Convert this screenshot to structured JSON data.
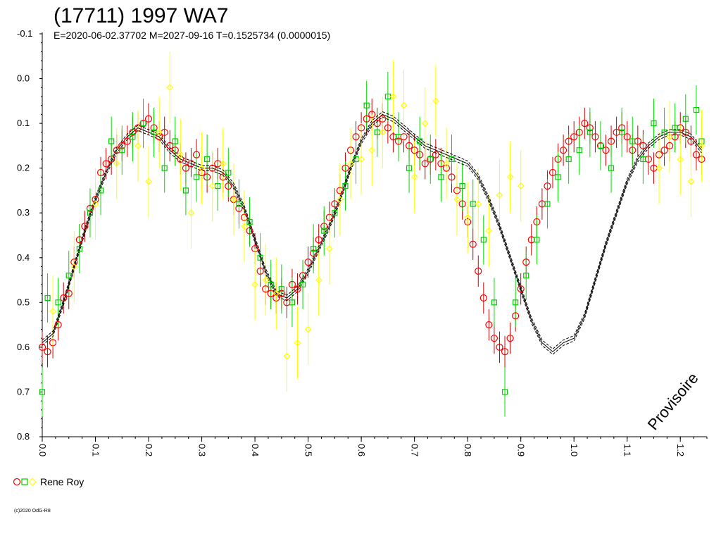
{
  "chart_data": {
    "type": "scatter",
    "title": "(17711) 1997 WA7",
    "subtitle": "E=2020-06-02.37702    M=2027-09-16    T=0.1525734 (0.0000015)",
    "x_ticks": [
      "0.0",
      "0.1",
      "0.2",
      "0.3",
      "0.4",
      "0.5",
      "0.6",
      "0.7",
      "0.8",
      "0.9",
      "1.0",
      "1.1",
      "1.2"
    ],
    "y_ticks": [
      "-0.1",
      "0.0",
      "0.1",
      "0.2",
      "0.3",
      "0.4",
      "0.5",
      "0.6",
      "0.7",
      "0.8"
    ],
    "xlim": [
      0.0,
      1.25
    ],
    "ylim": [
      -0.1,
      0.8
    ],
    "y_inverted": true,
    "grid": false,
    "legend": {
      "placement": "bottom-left",
      "entries": [
        "Rene Roy"
      ]
    },
    "annotation": "Provisoire",
    "copyright": "(c)2020 OdG-R8",
    "series": [
      {
        "marker": "circle",
        "color": "#ff0000",
        "error_color": "#cc0000",
        "points": [
          [
            0.0,
            0.6
          ],
          [
            0.01,
            0.61
          ],
          [
            0.02,
            0.59
          ],
          [
            0.03,
            0.55
          ],
          [
            0.04,
            0.49
          ],
          [
            0.05,
            0.48
          ],
          [
            0.06,
            0.41
          ],
          [
            0.07,
            0.36
          ],
          [
            0.08,
            0.33
          ],
          [
            0.09,
            0.29
          ],
          [
            0.1,
            0.27
          ],
          [
            0.11,
            0.21
          ],
          [
            0.12,
            0.19
          ],
          [
            0.13,
            0.18
          ],
          [
            0.14,
            0.16
          ],
          [
            0.15,
            0.15
          ],
          [
            0.16,
            0.14
          ],
          [
            0.17,
            0.12
          ],
          [
            0.18,
            0.11
          ],
          [
            0.19,
            0.1
          ],
          [
            0.2,
            0.09
          ],
          [
            0.21,
            0.11
          ],
          [
            0.22,
            0.13
          ],
          [
            0.23,
            0.12
          ],
          [
            0.24,
            0.15
          ],
          [
            0.25,
            0.16
          ],
          [
            0.26,
            0.18
          ],
          [
            0.27,
            0.2
          ],
          [
            0.28,
            0.19
          ],
          [
            0.29,
            0.17
          ],
          [
            0.3,
            0.21
          ],
          [
            0.31,
            0.22
          ],
          [
            0.32,
            0.2
          ],
          [
            0.33,
            0.19
          ],
          [
            0.34,
            0.22
          ],
          [
            0.35,
            0.24
          ],
          [
            0.36,
            0.27
          ],
          [
            0.37,
            0.29
          ],
          [
            0.38,
            0.31
          ],
          [
            0.39,
            0.34
          ],
          [
            0.4,
            0.38
          ],
          [
            0.41,
            0.43
          ],
          [
            0.42,
            0.47
          ],
          [
            0.43,
            0.48
          ],
          [
            0.44,
            0.49
          ],
          [
            0.45,
            0.48
          ],
          [
            0.46,
            0.5
          ],
          [
            0.47,
            0.46
          ],
          [
            0.48,
            0.47
          ],
          [
            0.49,
            0.44
          ],
          [
            0.5,
            0.41
          ],
          [
            0.51,
            0.39
          ],
          [
            0.52,
            0.36
          ],
          [
            0.53,
            0.33
          ],
          [
            0.54,
            0.31
          ],
          [
            0.55,
            0.28
          ],
          [
            0.56,
            0.25
          ],
          [
            0.57,
            0.2
          ],
          [
            0.58,
            0.16
          ],
          [
            0.59,
            0.13
          ],
          [
            0.6,
            0.11
          ],
          [
            0.61,
            0.09
          ],
          [
            0.62,
            0.08
          ],
          [
            0.63,
            0.1
          ],
          [
            0.64,
            0.09
          ],
          [
            0.65,
            0.11
          ],
          [
            0.66,
            0.13
          ],
          [
            0.67,
            0.14
          ],
          [
            0.68,
            0.13
          ],
          [
            0.69,
            0.15
          ],
          [
            0.7,
            0.16
          ],
          [
            0.71,
            0.17
          ],
          [
            0.72,
            0.19
          ],
          [
            0.73,
            0.18
          ],
          [
            0.74,
            0.17
          ],
          [
            0.75,
            0.19
          ],
          [
            0.76,
            0.2
          ],
          [
            0.77,
            0.22
          ],
          [
            0.78,
            0.25
          ],
          [
            0.79,
            0.28
          ],
          [
            0.8,
            0.32
          ],
          [
            0.81,
            0.37
          ],
          [
            0.82,
            0.43
          ],
          [
            0.83,
            0.49
          ],
          [
            0.84,
            0.55
          ],
          [
            0.85,
            0.58
          ],
          [
            0.86,
            0.6
          ],
          [
            0.87,
            0.61
          ],
          [
            0.88,
            0.58
          ],
          [
            0.89,
            0.53
          ],
          [
            0.9,
            0.47
          ],
          [
            0.91,
            0.41
          ],
          [
            0.92,
            0.36
          ],
          [
            0.93,
            0.32
          ],
          [
            0.94,
            0.28
          ],
          [
            0.95,
            0.24
          ],
          [
            0.96,
            0.21
          ],
          [
            0.97,
            0.18
          ],
          [
            0.98,
            0.16
          ],
          [
            0.99,
            0.14
          ],
          [
            1.0,
            0.13
          ],
          [
            1.01,
            0.12
          ],
          [
            1.02,
            0.1
          ],
          [
            1.03,
            0.11
          ],
          [
            1.04,
            0.13
          ],
          [
            1.05,
            0.15
          ],
          [
            1.06,
            0.16
          ],
          [
            1.07,
            0.14
          ],
          [
            1.08,
            0.12
          ],
          [
            1.09,
            0.11
          ],
          [
            1.1,
            0.13
          ],
          [
            1.11,
            0.16
          ],
          [
            1.12,
            0.14
          ],
          [
            1.13,
            0.15
          ],
          [
            1.14,
            0.18
          ],
          [
            1.15,
            0.2
          ],
          [
            1.16,
            0.17
          ],
          [
            1.17,
            0.16
          ],
          [
            1.18,
            0.15
          ],
          [
            1.19,
            0.13
          ],
          [
            1.2,
            0.11
          ],
          [
            1.21,
            0.12
          ],
          [
            1.22,
            0.14
          ],
          [
            1.23,
            0.17
          ],
          [
            1.24,
            0.18
          ]
        ]
      },
      {
        "marker": "square",
        "color": "#00cc00",
        "error_color": "#00dd00",
        "points": [
          [
            0.0,
            0.7
          ],
          [
            0.01,
            0.49
          ],
          [
            0.03,
            0.5
          ],
          [
            0.05,
            0.44
          ],
          [
            0.07,
            0.38
          ],
          [
            0.09,
            0.3
          ],
          [
            0.11,
            0.25
          ],
          [
            0.13,
            0.14
          ],
          [
            0.15,
            0.16
          ],
          [
            0.17,
            0.13
          ],
          [
            0.19,
            0.1
          ],
          [
            0.21,
            0.12
          ],
          [
            0.23,
            0.2
          ],
          [
            0.25,
            0.14
          ],
          [
            0.27,
            0.25
          ],
          [
            0.29,
            0.22
          ],
          [
            0.31,
            0.18
          ],
          [
            0.33,
            0.24
          ],
          [
            0.35,
            0.21
          ],
          [
            0.37,
            0.28
          ],
          [
            0.39,
            0.32
          ],
          [
            0.41,
            0.4
          ],
          [
            0.43,
            0.46
          ],
          [
            0.45,
            0.47
          ],
          [
            0.47,
            0.5
          ],
          [
            0.49,
            0.46
          ],
          [
            0.51,
            0.38
          ],
          [
            0.53,
            0.34
          ],
          [
            0.55,
            0.3
          ],
          [
            0.57,
            0.24
          ],
          [
            0.59,
            0.18
          ],
          [
            0.61,
            0.06
          ],
          [
            0.63,
            0.12
          ],
          [
            0.65,
            0.04
          ],
          [
            0.67,
            0.13
          ],
          [
            0.69,
            0.2
          ],
          [
            0.71,
            0.14
          ],
          [
            0.73,
            0.18
          ],
          [
            0.75,
            0.22
          ],
          [
            0.77,
            0.18
          ],
          [
            0.79,
            0.24
          ],
          [
            0.81,
            0.28
          ],
          [
            0.83,
            0.36
          ],
          [
            0.85,
            0.5
          ],
          [
            0.87,
            0.7
          ],
          [
            0.89,
            0.5
          ],
          [
            0.91,
            0.44
          ],
          [
            0.93,
            0.36
          ],
          [
            0.95,
            0.28
          ],
          [
            0.97,
            0.22
          ],
          [
            0.99,
            0.18
          ],
          [
            1.01,
            0.16
          ],
          [
            1.03,
            0.12
          ],
          [
            1.05,
            0.15
          ],
          [
            1.07,
            0.2
          ],
          [
            1.09,
            0.12
          ],
          [
            1.11,
            0.14
          ],
          [
            1.13,
            0.18
          ],
          [
            1.15,
            0.1
          ],
          [
            1.17,
            0.12
          ],
          [
            1.19,
            0.11
          ],
          [
            1.21,
            0.09
          ],
          [
            1.23,
            0.07
          ],
          [
            1.24,
            0.14
          ]
        ]
      },
      {
        "marker": "diamond",
        "color": "#ffff00",
        "error_color": "#ffff00",
        "points": [
          [
            0.02,
            0.52
          ],
          [
            0.06,
            0.42
          ],
          [
            0.1,
            0.28
          ],
          [
            0.14,
            0.19
          ],
          [
            0.18,
            0.15
          ],
          [
            0.2,
            0.23
          ],
          [
            0.22,
            0.12
          ],
          [
            0.24,
            0.02
          ],
          [
            0.26,
            0.17
          ],
          [
            0.28,
            0.3
          ],
          [
            0.3,
            0.2
          ],
          [
            0.32,
            0.24
          ],
          [
            0.34,
            0.19
          ],
          [
            0.36,
            0.27
          ],
          [
            0.38,
            0.33
          ],
          [
            0.4,
            0.46
          ],
          [
            0.42,
            0.45
          ],
          [
            0.44,
            0.48
          ],
          [
            0.46,
            0.62
          ],
          [
            0.48,
            0.59
          ],
          [
            0.5,
            0.56
          ],
          [
            0.52,
            0.45
          ],
          [
            0.54,
            0.38
          ],
          [
            0.56,
            0.27
          ],
          [
            0.58,
            0.19
          ],
          [
            0.6,
            0.18
          ],
          [
            0.62,
            0.16
          ],
          [
            0.64,
            0.12
          ],
          [
            0.66,
            0.04
          ],
          [
            0.68,
            0.06
          ],
          [
            0.7,
            0.22
          ],
          [
            0.72,
            0.1
          ],
          [
            0.74,
            0.05
          ],
          [
            0.76,
            0.19
          ],
          [
            0.78,
            0.27
          ],
          [
            0.8,
            0.31
          ],
          [
            0.82,
            0.28
          ],
          [
            0.84,
            0.34
          ],
          [
            0.86,
            0.26
          ],
          [
            0.88,
            0.22
          ],
          [
            0.9,
            0.24
          ],
          [
            1.16,
            0.2
          ],
          [
            1.18,
            0.13
          ],
          [
            1.2,
            0.18
          ],
          [
            1.22,
            0.23
          ],
          [
            1.24,
            0.15
          ]
        ]
      }
    ],
    "fit_curve": {
      "color": "#000000",
      "points": [
        [
          0.0,
          0.59
        ],
        [
          0.02,
          0.57
        ],
        [
          0.04,
          0.5
        ],
        [
          0.06,
          0.42
        ],
        [
          0.08,
          0.34
        ],
        [
          0.1,
          0.27
        ],
        [
          0.12,
          0.21
        ],
        [
          0.14,
          0.16
        ],
        [
          0.16,
          0.13
        ],
        [
          0.18,
          0.11
        ],
        [
          0.2,
          0.12
        ],
        [
          0.22,
          0.13
        ],
        [
          0.24,
          0.16
        ],
        [
          0.26,
          0.18
        ],
        [
          0.28,
          0.19
        ],
        [
          0.3,
          0.2
        ],
        [
          0.32,
          0.2
        ],
        [
          0.34,
          0.21
        ],
        [
          0.36,
          0.24
        ],
        [
          0.38,
          0.29
        ],
        [
          0.4,
          0.36
        ],
        [
          0.42,
          0.43
        ],
        [
          0.44,
          0.48
        ],
        [
          0.46,
          0.49
        ],
        [
          0.48,
          0.47
        ],
        [
          0.5,
          0.43
        ],
        [
          0.52,
          0.38
        ],
        [
          0.54,
          0.33
        ],
        [
          0.56,
          0.27
        ],
        [
          0.58,
          0.2
        ],
        [
          0.6,
          0.14
        ],
        [
          0.62,
          0.1
        ],
        [
          0.64,
          0.08
        ],
        [
          0.66,
          0.09
        ],
        [
          0.68,
          0.11
        ],
        [
          0.7,
          0.13
        ],
        [
          0.72,
          0.15
        ],
        [
          0.74,
          0.16
        ],
        [
          0.76,
          0.17
        ],
        [
          0.78,
          0.18
        ],
        [
          0.8,
          0.19
        ],
        [
          0.82,
          0.22
        ],
        [
          0.84,
          0.27
        ],
        [
          0.86,
          0.33
        ],
        [
          0.88,
          0.4
        ],
        [
          0.9,
          0.47
        ],
        [
          0.92,
          0.54
        ],
        [
          0.94,
          0.59
        ],
        [
          0.96,
          0.61
        ],
        [
          0.98,
          0.59
        ],
        [
          1.0,
          0.58
        ],
        [
          1.02,
          0.53
        ],
        [
          1.04,
          0.45
        ],
        [
          1.06,
          0.37
        ],
        [
          1.08,
          0.3
        ],
        [
          1.1,
          0.23
        ],
        [
          1.12,
          0.18
        ],
        [
          1.14,
          0.15
        ],
        [
          1.16,
          0.13
        ],
        [
          1.18,
          0.12
        ],
        [
          1.2,
          0.12
        ],
        [
          1.22,
          0.13
        ],
        [
          1.24,
          0.16
        ]
      ]
    }
  }
}
